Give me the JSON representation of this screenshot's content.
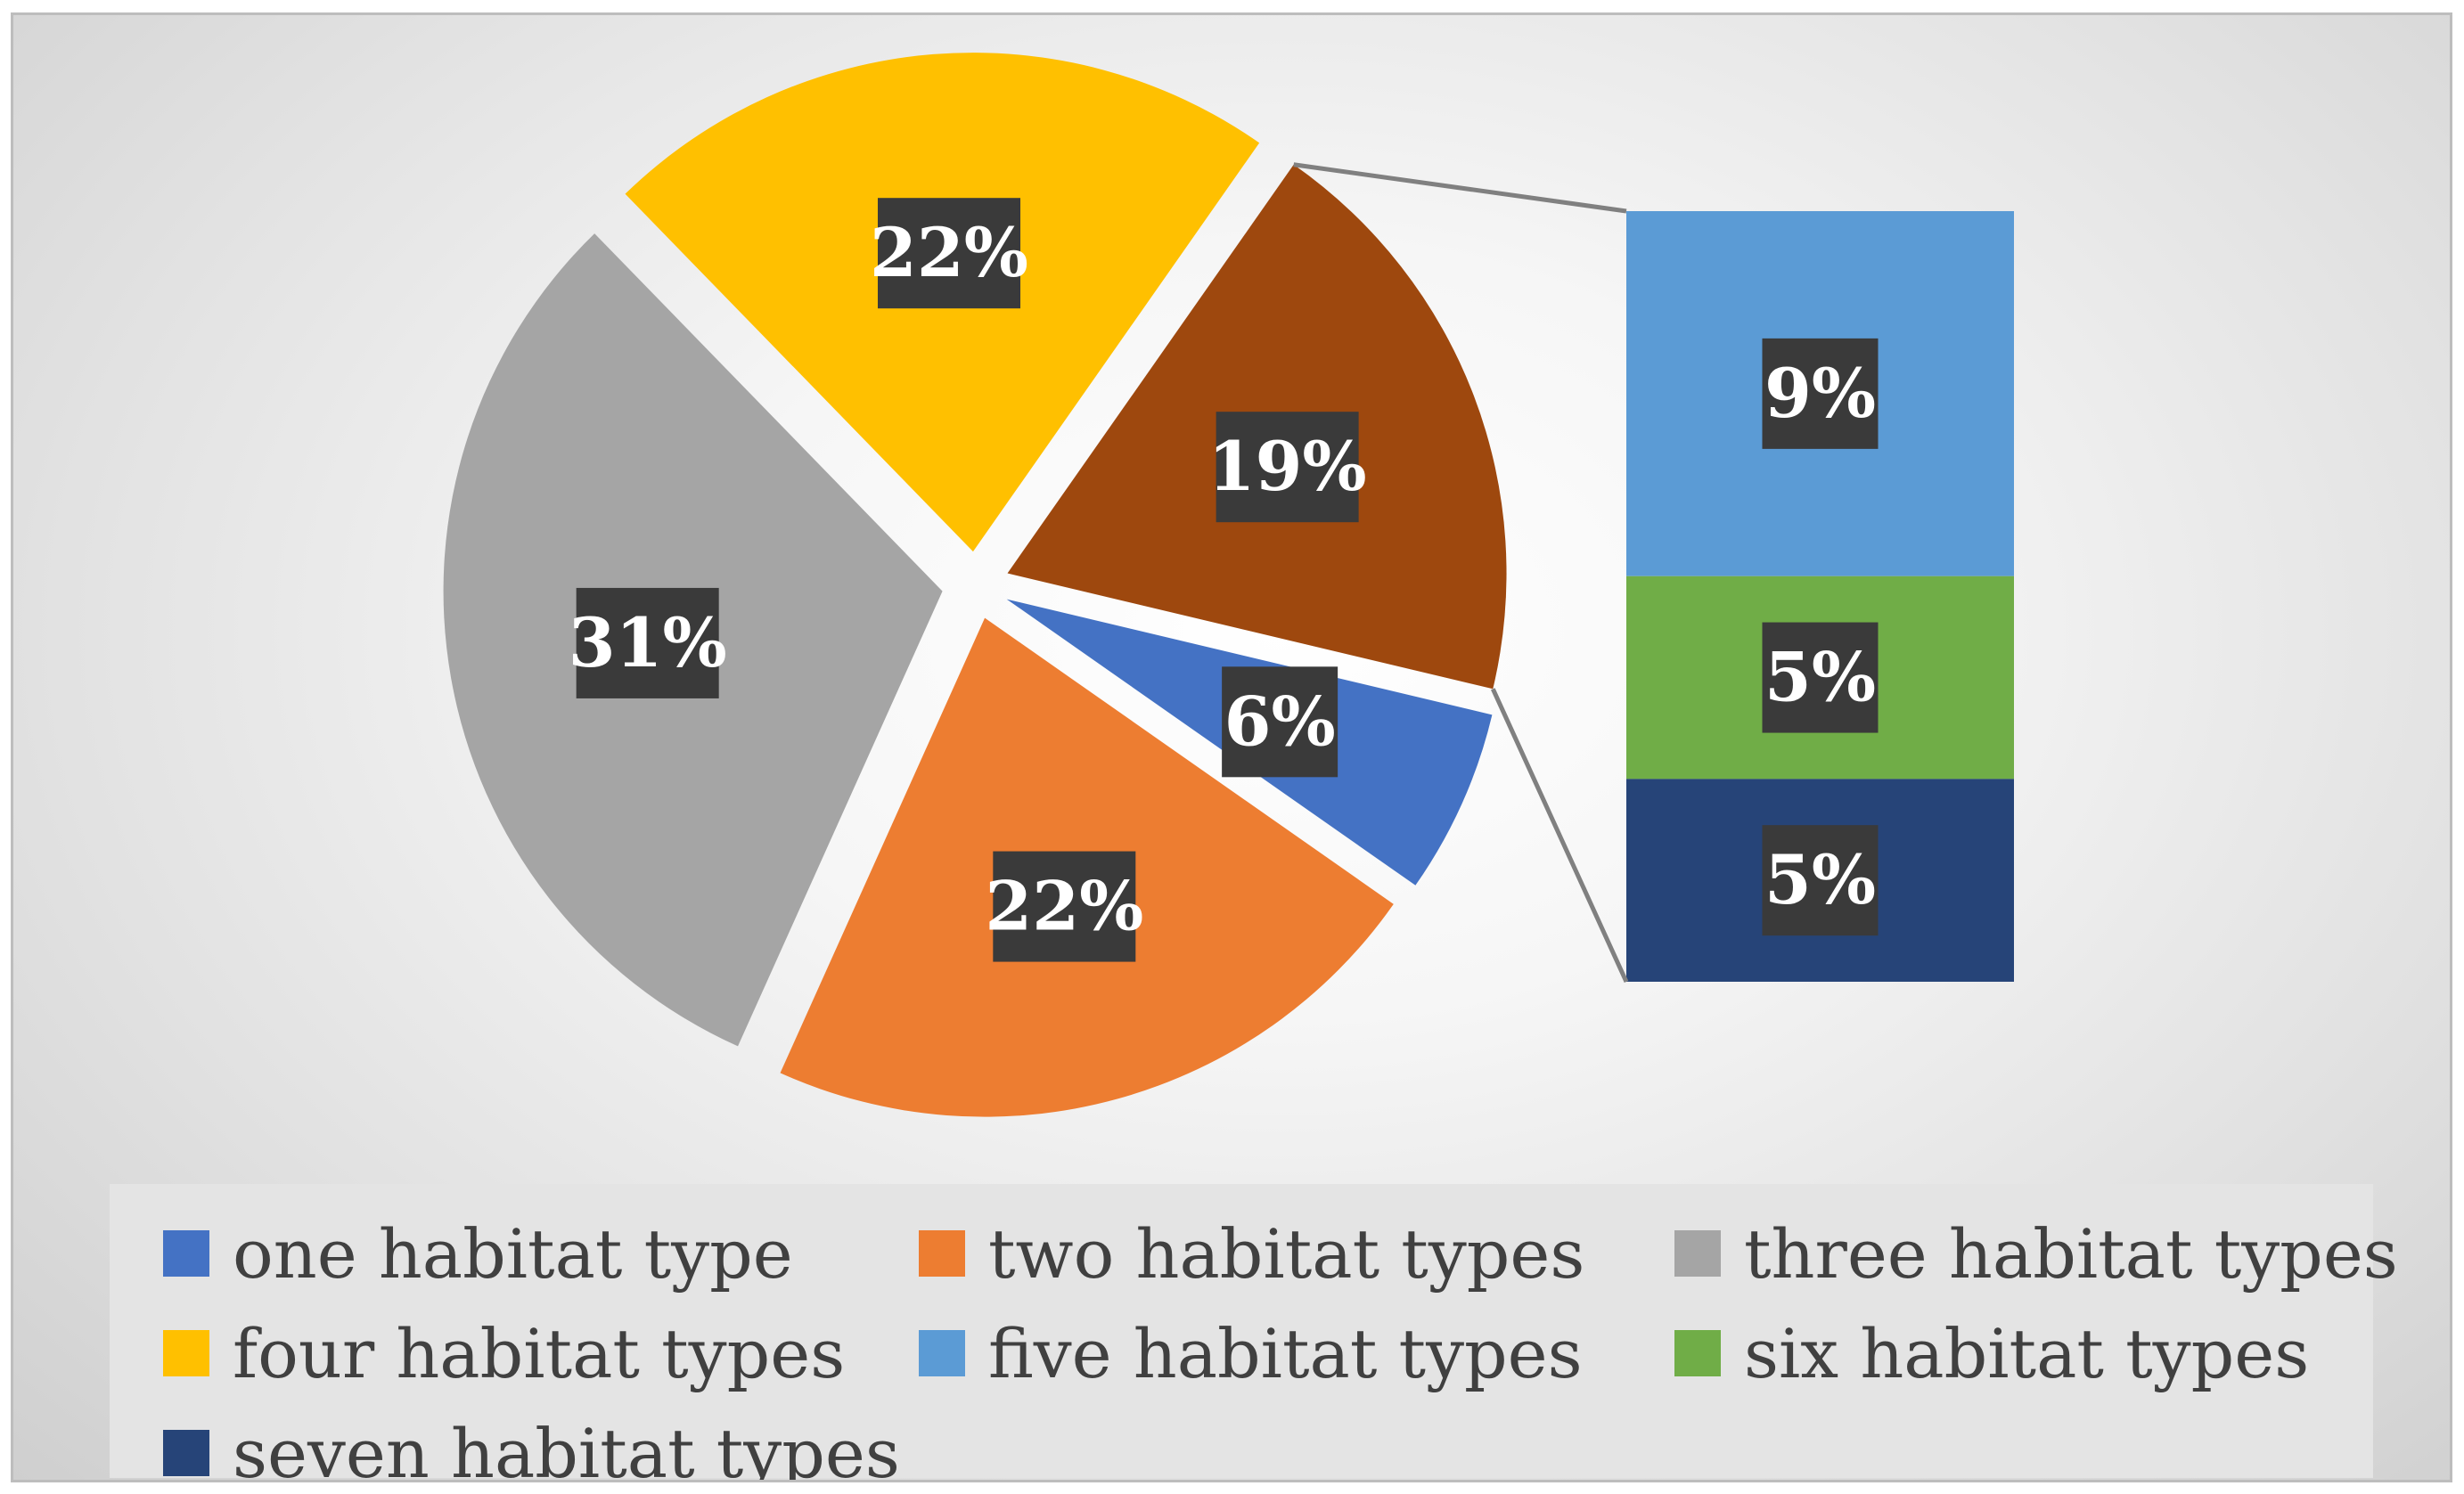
{
  "chart_data": {
    "type": "bar-of-pie",
    "title": "",
    "unit": "%",
    "series": [
      {
        "name": "one habitat type",
        "value": 6,
        "label": "6%",
        "color": "#4472C4",
        "group": "pie"
      },
      {
        "name": "two habitat types",
        "value": 22,
        "label": "22%",
        "color": "#ED7D31",
        "group": "pie"
      },
      {
        "name": "three habitat types",
        "value": 31,
        "label": "31%",
        "color": "#A5A5A5",
        "group": "pie"
      },
      {
        "name": "four habitat types",
        "value": 22,
        "label": "22%",
        "color": "#FFC000",
        "group": "pie"
      },
      {
        "name": "five habitat types",
        "value": 9,
        "label": "9%",
        "color": "#5B9BD5",
        "group": "bar"
      },
      {
        "name": "six habitat types",
        "value": 5,
        "label": "5%",
        "color": "#70AD47",
        "group": "bar"
      },
      {
        "name": "seven habitat types",
        "value": 5,
        "label": "5%",
        "color": "#264478",
        "group": "bar"
      }
    ],
    "other": {
      "value": 19,
      "label": "19%",
      "color": "#9E480E"
    },
    "legend_position": "bottom"
  }
}
